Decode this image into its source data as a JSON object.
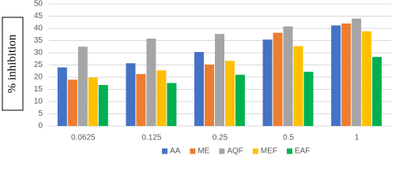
{
  "chart_data": {
    "type": "bar",
    "y_label": "% inhibition",
    "categories": [
      "0.0625",
      "0.125",
      "0.25",
      "0.5",
      "1"
    ],
    "series": [
      {
        "name": "AA",
        "color": "#4472c4",
        "values": [
          24,
          25.7,
          30.3,
          35.4,
          41.2
        ]
      },
      {
        "name": "ME",
        "color": "#ed7d31",
        "values": [
          19,
          21.3,
          25.2,
          38.2,
          42
        ]
      },
      {
        "name": "AQF",
        "color": "#a5a5a5",
        "values": [
          32.5,
          35.8,
          37.7,
          40.8,
          44
        ]
      },
      {
        "name": "MEF",
        "color": "#ffc000",
        "values": [
          19.8,
          22.8,
          26.7,
          32.7,
          38.8
        ]
      },
      {
        "name": "EAF",
        "color": "#00b050",
        "values": [
          16.8,
          17.6,
          21,
          22.2,
          28.3
        ]
      }
    ],
    "ylim": [
      0,
      50
    ],
    "yticks": [
      0,
      5,
      10,
      15,
      20,
      25,
      30,
      35,
      40,
      45,
      50
    ],
    "grid": true,
    "legend": "bottom"
  }
}
